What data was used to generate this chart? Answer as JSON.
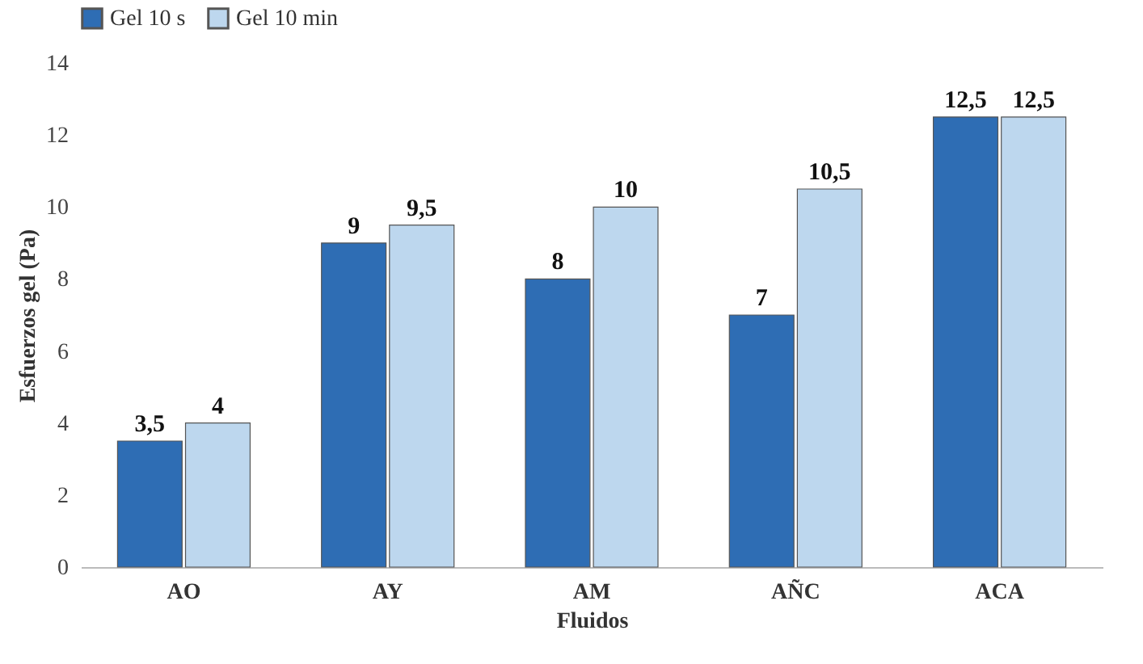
{
  "chart_data": {
    "type": "bar",
    "xlabel": "Fluidos",
    "ylabel": "Esfuerzos gel (Pa)",
    "categories": [
      "AO",
      "AY",
      "AM",
      "AÑC",
      "ACA"
    ],
    "series": [
      {
        "name": "Gel 10 s",
        "color": "#2e6db4",
        "values": [
          3.5,
          9,
          8,
          7,
          12.5
        ],
        "value_labels": [
          "3,5",
          "9",
          "8",
          "7",
          "12,5"
        ]
      },
      {
        "name": "Gel 10 min",
        "color": "#bdd7ee",
        "values": [
          4,
          9.5,
          10,
          10.5,
          12.5
        ],
        "value_labels": [
          "4",
          "9,5",
          "10",
          "10,5",
          "12,5"
        ]
      }
    ],
    "ylim": [
      0,
      14
    ],
    "yticks": [
      0,
      2,
      4,
      6,
      8,
      10,
      12,
      14
    ],
    "grid": false,
    "legend": "top"
  }
}
